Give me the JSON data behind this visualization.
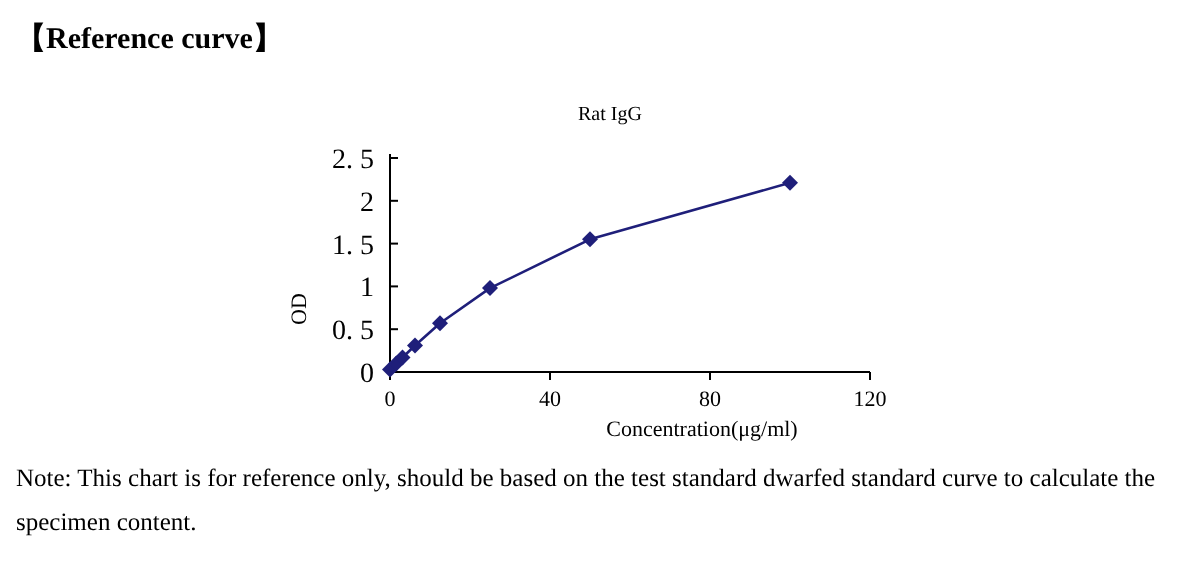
{
  "chart_data": {
    "type": "line",
    "title": "【Reference curve】",
    "subtitle": "Rat IgG",
    "xlabel": "Concentration(μg/ml)",
    "ylabel": "OD",
    "annotations": [
      "Note: This chart is for reference only, should be based on the test standard dwarfed standard curve to calculate the specimen content."
    ],
    "x": [
      0,
      1.56,
      3.13,
      6.25,
      12.5,
      25,
      50,
      100
    ],
    "series": [
      {
        "color": "#1f1f7a",
        "values": [
          0.03,
          0.1,
          0.17,
          0.31,
          0.57,
          0.98,
          1.55,
          2.21
        ]
      }
    ],
    "xlim": [
      0,
      120
    ],
    "xticks": [
      0,
      40,
      80,
      120
    ],
    "ylim": [
      0,
      2.5
    ],
    "yticks": [
      0,
      {
        "value": 0.5,
        "label": "0. 5"
      },
      1,
      {
        "value": 1.5,
        "label": "1. 5"
      },
      2,
      {
        "value": 2.5,
        "label": "2. 5"
      }
    ],
    "marker": "diamond",
    "line_style": "solid"
  }
}
